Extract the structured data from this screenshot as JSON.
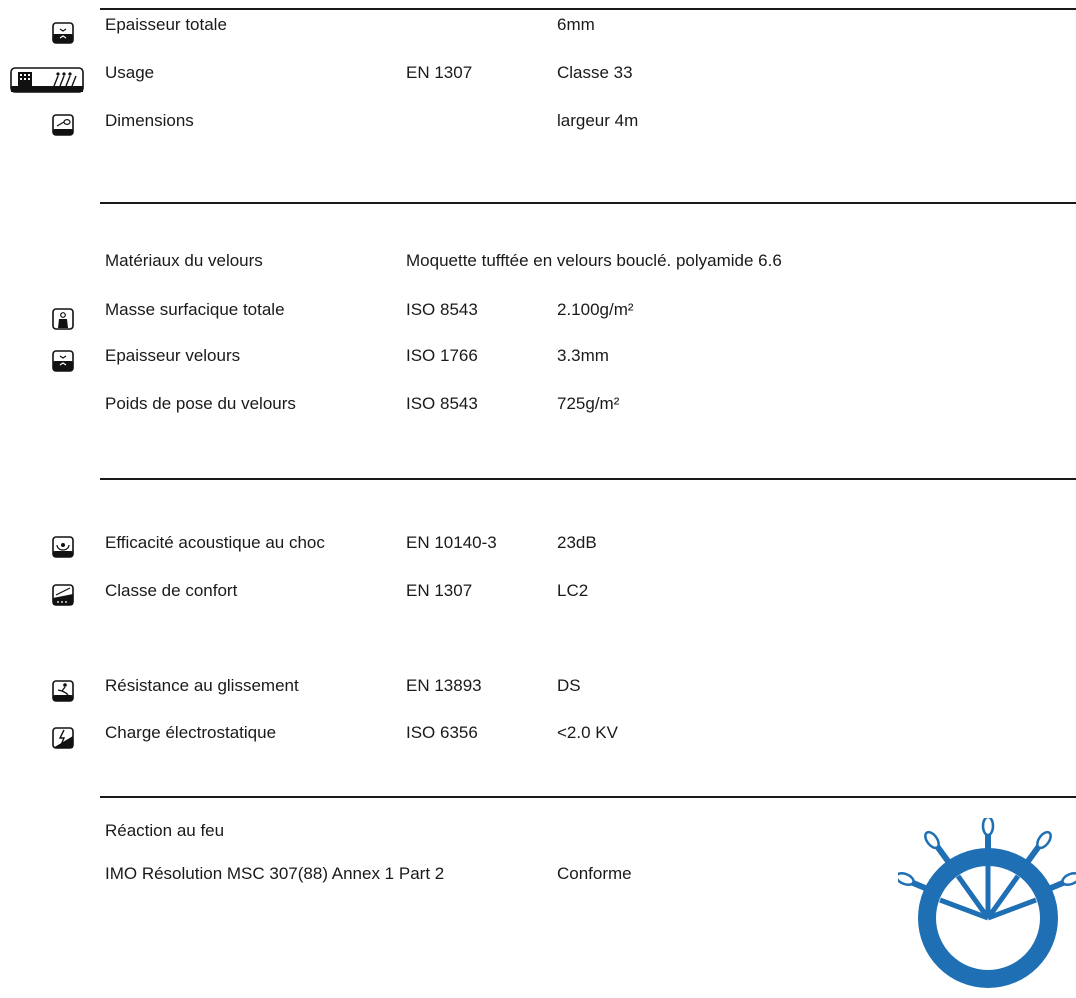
{
  "section1": {
    "rows": [
      {
        "label": "Epaisseur totale",
        "norm": "",
        "value": "6mm",
        "icon": "thickness-icon"
      },
      {
        "label": "Usage",
        "norm": "EN 1307",
        "value": "Classe 33",
        "icon": "usage-class-icon"
      },
      {
        "label": "Dimensions",
        "norm": "",
        "value": "largeur 4m",
        "icon": "roll-width-icon"
      }
    ]
  },
  "section2": {
    "material_label": "Matériaux du velours",
    "material_value": "Moquette tufftée en velours bouclé. polyamide 6.6",
    "rows": [
      {
        "label": "Masse surfacique totale",
        "norm": "ISO 8543",
        "value": "2.100g/m²",
        "icon": "weight-icon"
      },
      {
        "label": "Epaisseur velours",
        "norm": "ISO 1766",
        "value": "3.3mm",
        "icon": "pile-thickness-icon"
      },
      {
        "label": "Poids de pose du velours",
        "norm": "ISO 8543",
        "value": "725g/m²",
        "icon": ""
      }
    ]
  },
  "section3": {
    "rows": [
      {
        "label": "Efficacité acoustique au choc",
        "norm": "EN 10140-3",
        "value": "23dB",
        "icon": "acoustic-icon"
      },
      {
        "label": "Classe de confort",
        "norm": "EN 1307",
        "value": "LC2",
        "icon": "comfort-icon"
      },
      {
        "label": "Résistance au glissement",
        "norm": "EN 13893",
        "value": "DS",
        "icon": "slip-resistance-icon"
      },
      {
        "label": "Charge électrostatique",
        "norm": "ISO 6356",
        "value": "<2.0 KV",
        "icon": "electrostatic-icon"
      }
    ]
  },
  "section4": {
    "title": "Réaction au feu",
    "imo_label": "IMO Résolution MSC 307(88) Annex 1 Part 2",
    "imo_value": "Conforme",
    "badge_icon": "ship-wheel-icon",
    "badge_color": "#1f6fb4"
  }
}
